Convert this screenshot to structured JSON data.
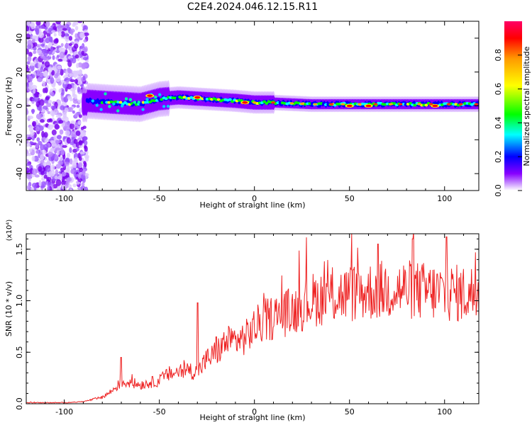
{
  "title": "C2E4.2024.046.12.15.R11",
  "chart_data": [
    {
      "type": "heatmap",
      "xlabel": "Height of straight line (km)",
      "ylabel": "Frequency (Hz)",
      "xlim": [
        -120,
        118
      ],
      "ylim": [
        -50,
        50
      ],
      "xticks": [
        -100,
        -50,
        0,
        50,
        100
      ],
      "yticks": [
        -40,
        -20,
        0,
        20,
        40
      ],
      "grid": false,
      "colorbar": {
        "label": "Normalized spectral amplitude",
        "range": [
          0.0,
          1.0
        ],
        "ticks": [
          "0.0",
          "0.2",
          "0.4",
          "0.6",
          "0.8"
        ],
        "colors": [
          "#ffffff",
          "#cc99ff",
          "#8800ff",
          "#0000ff",
          "#00ffff",
          "#00ff00",
          "#ffff00",
          "#ff9900",
          "#ff0000",
          "#ff0066"
        ]
      },
      "features": {
        "noise_region_x": [
          -120,
          -88
        ],
        "ridge_center_hz": [
          [
            -88,
            3
          ],
          [
            -75,
            2
          ],
          [
            -60,
            1
          ],
          [
            -50,
            4
          ],
          [
            -40,
            5
          ],
          [
            -25,
            4
          ],
          [
            -10,
            3
          ],
          [
            0,
            2
          ],
          [
            10,
            2
          ],
          [
            30,
            1
          ],
          [
            50,
            1
          ],
          [
            80,
            1
          ],
          [
            118,
            1
          ]
        ],
        "peaks": [
          [
            -55,
            6
          ],
          [
            -30,
            5
          ],
          [
            -5,
            2
          ],
          [
            50,
            0
          ],
          [
            60,
            0
          ],
          [
            95,
            0
          ]
        ]
      }
    },
    {
      "type": "line",
      "xlabel": "Height of straight line (km)",
      "ylabel": "SNR (10 * v/v)",
      "y_multiplier": "(x10⁴)",
      "xlim": [
        -120,
        118
      ],
      "ylim": [
        0,
        1.65
      ],
      "xticks": [
        -100,
        -50,
        0,
        50,
        100
      ],
      "yticks": [
        "0.0",
        "0.5",
        "1.0",
        "1.5"
      ],
      "grid": false,
      "series": [
        {
          "color": "#ee2222",
          "x": [
            -120,
            -100,
            -90,
            -85,
            -80,
            -75,
            -70,
            -65,
            -60,
            -55,
            -50,
            -45,
            -40,
            -35,
            -30,
            -25,
            -20,
            -15,
            -10,
            -5,
            0,
            5,
            10,
            15,
            20,
            30,
            40,
            50,
            60,
            70,
            80,
            90,
            100,
            110,
            118
          ],
          "y": [
            0.01,
            0.01,
            0.02,
            0.04,
            0.06,
            0.12,
            0.2,
            0.2,
            0.18,
            0.2,
            0.22,
            0.28,
            0.3,
            0.32,
            0.3,
            0.42,
            0.48,
            0.58,
            0.6,
            0.62,
            0.72,
            0.78,
            0.82,
            0.85,
            0.88,
            0.98,
            1.02,
            1.04,
            1.06,
            1.08,
            1.08,
            1.06,
            1.05,
            1.04,
            1.05
          ],
          "spikes": [
            [
              -70,
              0.45
            ],
            [
              -30,
              0.98
            ],
            [
              -20,
              0.65
            ],
            [
              83,
              1.6
            ],
            [
              101,
              1.62
            ],
            [
              52,
              1.3
            ],
            [
              65,
              1.55
            ]
          ]
        }
      ]
    }
  ]
}
